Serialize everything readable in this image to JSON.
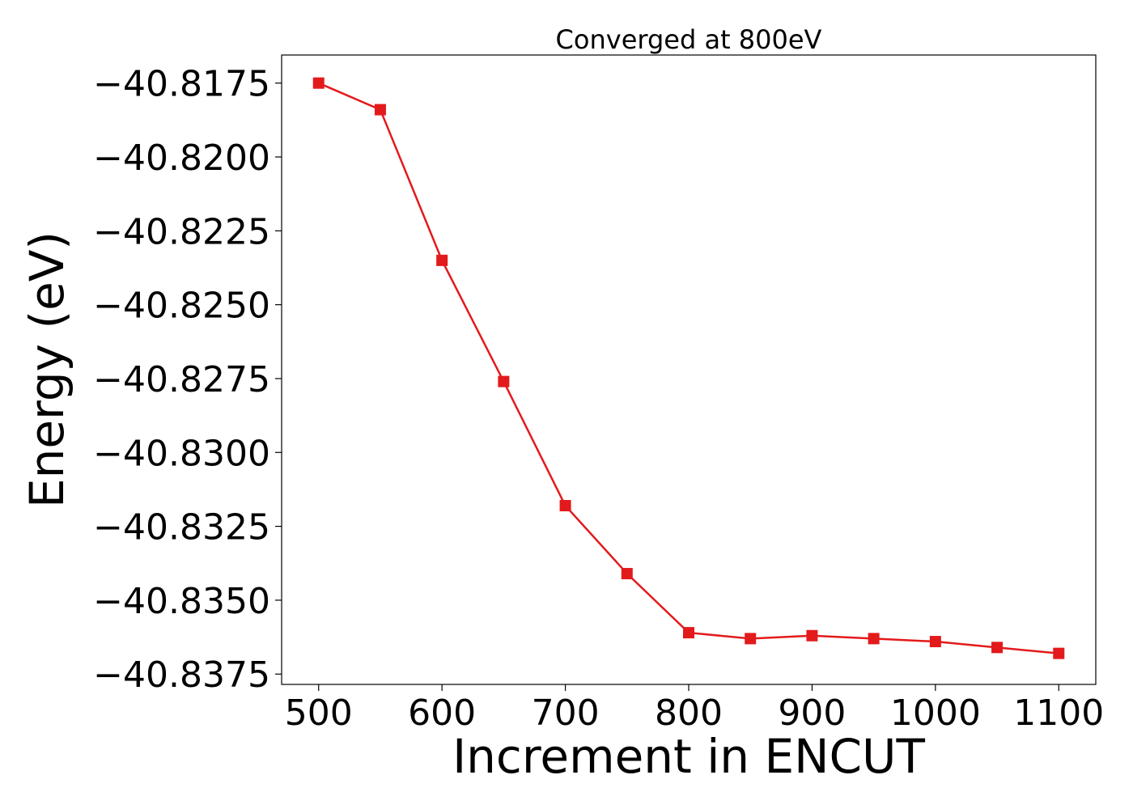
{
  "chart_data": {
    "type": "line",
    "title": "Converged at 800eV",
    "xlabel": "Increment in ENCUT",
    "ylabel": "Energy (eV)",
    "xlim": [
      470,
      1130
    ],
    "ylim": [
      -40.83785,
      -40.81655
    ],
    "x_ticks": [
      500,
      600,
      700,
      800,
      900,
      1000,
      1100
    ],
    "y_ticks": [
      -40.8175,
      -40.82,
      -40.8225,
      -40.825,
      -40.8275,
      -40.83,
      -40.8325,
      -40.835,
      -40.8375
    ],
    "y_tick_labels": [
      "−40.8175",
      "−40.8200",
      "−40.8225",
      "−40.8250",
      "−40.8275",
      "−40.8300",
      "−40.8325",
      "−40.8350",
      "−40.8375"
    ],
    "grid": false,
    "series": [
      {
        "color": "#e31a1c",
        "marker": "square",
        "x": [
          500,
          550,
          600,
          650,
          700,
          750,
          800,
          850,
          900,
          950,
          1000,
          1050,
          1100
        ],
        "y": [
          -40.8175,
          -40.8184,
          -40.8235,
          -40.8276,
          -40.8318,
          -40.8341,
          -40.8361,
          -40.8363,
          -40.8362,
          -40.8363,
          -40.8364,
          -40.8366,
          -40.8368
        ]
      }
    ]
  }
}
